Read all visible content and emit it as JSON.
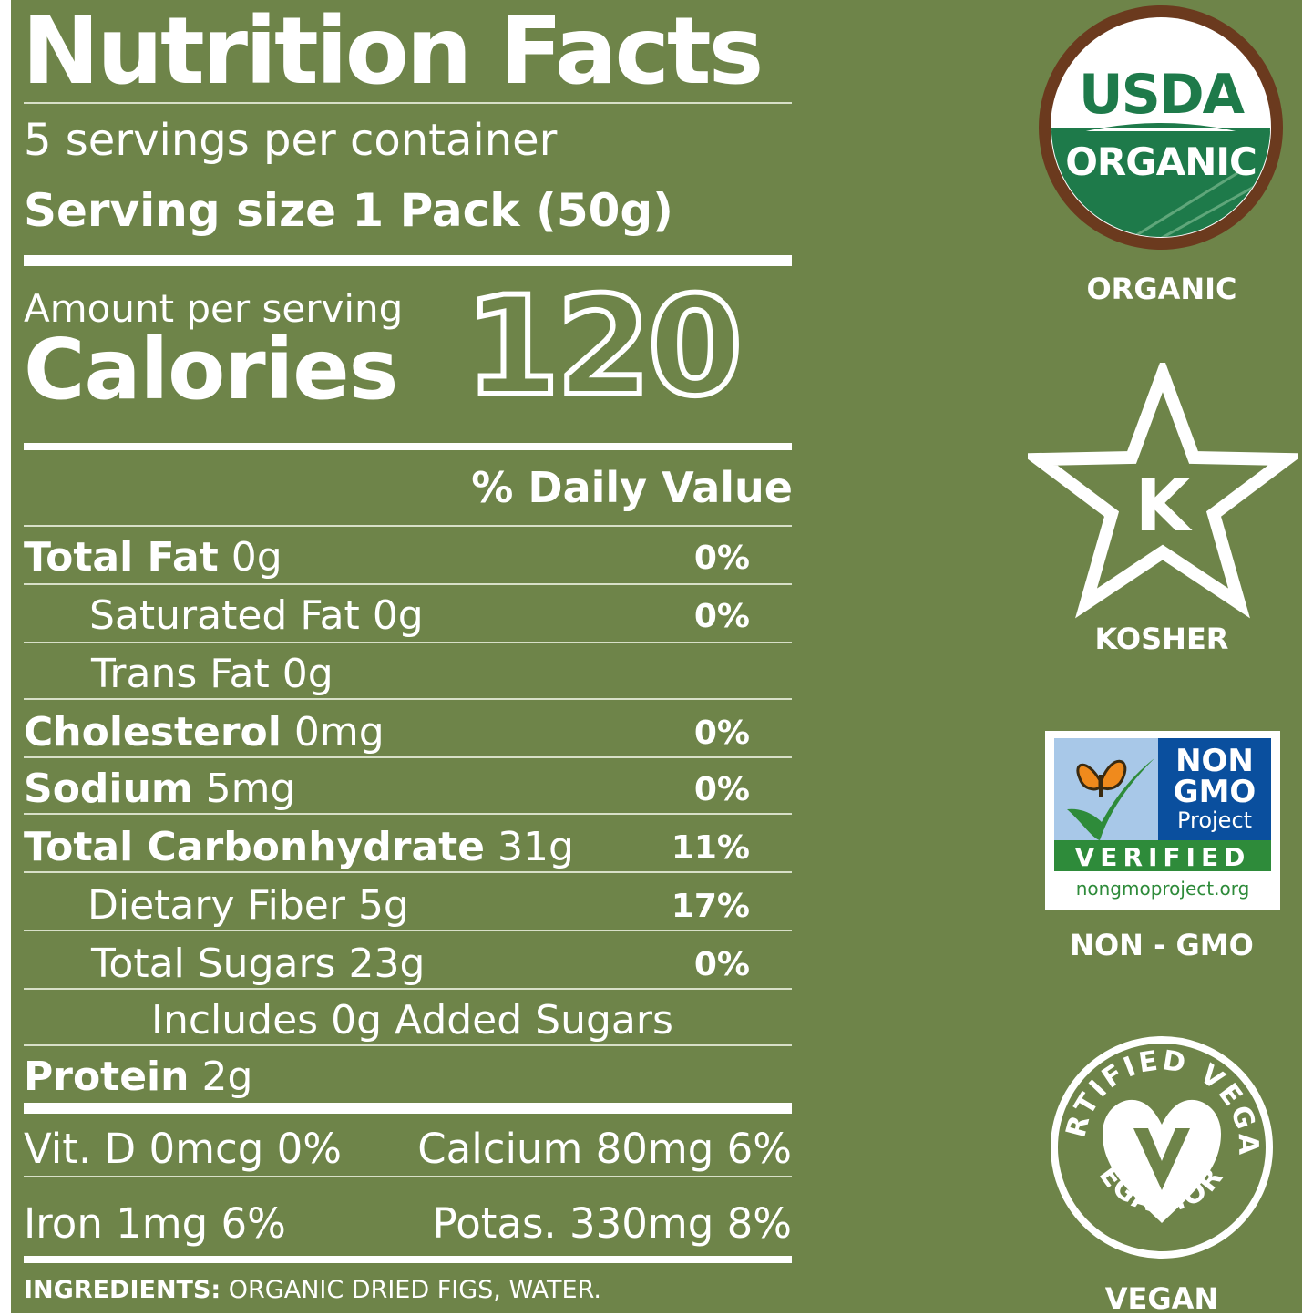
{
  "title": "Nutrition Facts",
  "servings_per_container": "5 servings per container",
  "serving_size": "Serving size 1 Pack (50g)",
  "amount_per_serving": "Amount per serving",
  "calories_label": "Calories",
  "calories_value": "120",
  "daily_value_header": "% Daily Value",
  "nutrients": [
    {
      "name": "Total Fat",
      "amount": "0g",
      "dv": "0%"
    },
    {
      "name": "Saturated Fat",
      "amount": "0g",
      "dv": "0%"
    },
    {
      "name": "Trans Fat",
      "amount": "0g",
      "dv": ""
    },
    {
      "name": "Cholesterol",
      "amount": "0mg",
      "dv": "0%"
    },
    {
      "name": "Sodium",
      "amount": "5mg",
      "dv": "0%"
    },
    {
      "name": "Total Carbonhydrate",
      "amount": "31g",
      "dv": "11%"
    },
    {
      "name": "Dietary Fiber",
      "amount": "5g",
      "dv": "17%"
    },
    {
      "name": "Total Sugars",
      "amount": "23g",
      "dv": "0%"
    },
    {
      "name": "Includes 0g Added Sugars",
      "amount": "",
      "dv": ""
    },
    {
      "name": "Protein",
      "amount": "2g",
      "dv": ""
    }
  ],
  "vitamins": {
    "vit_d": "Vit. D 0mcg 0%",
    "calcium": "Calcium 80mg 6%",
    "iron": "Iron 1mg 6%",
    "potassium": "Potas. 330mg 8%"
  },
  "ingredients_label": "INGREDIENTS:",
  "ingredients_text": "ORGANIC DRIED FIGS, WATER.",
  "certifications": {
    "usda": {
      "top": "USDA",
      "bottom": "ORGANIC",
      "label": "ORGANIC"
    },
    "kosher": {
      "letter": "K",
      "label": "KOSHER"
    },
    "nongmo": {
      "line1": "NON",
      "line2": "GMO",
      "line3": "Project",
      "verified": "VERIFIED",
      "url": "nongmoproject.org",
      "label": "NON - GMO"
    },
    "vegan": {
      "top_arc": "CERTIFIED VEGAN",
      "bottom_arc": "VEGAN.ORG",
      "label": "VEGAN"
    }
  },
  "colors": {
    "panel_green": "#6e8449",
    "usda_green": "#1e7a4a",
    "usda_brown": "#6b3a1e",
    "nongmo_blue": "#0a4f9e",
    "nongmo_green": "#2e8b3a",
    "butterfly_orange": "#f08a1c"
  }
}
